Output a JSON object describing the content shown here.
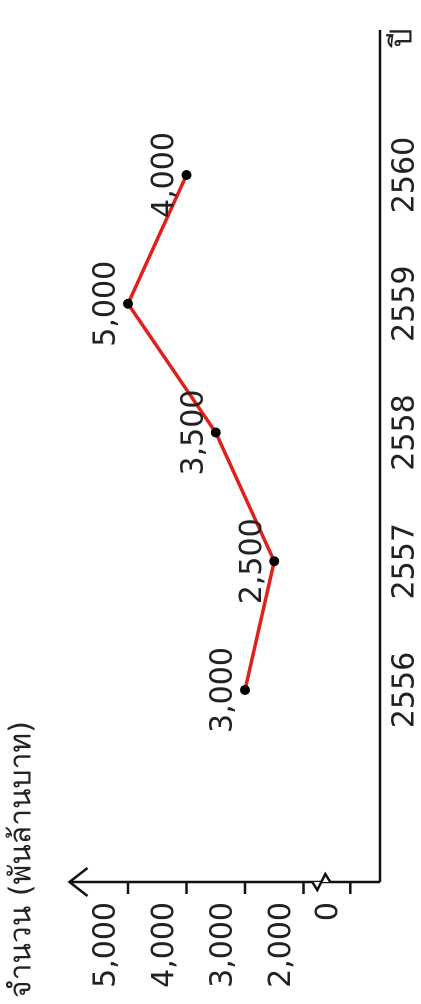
{
  "chart_data": {
    "type": "line",
    "y_label": "จำนวน (พันล้านบาท)",
    "x_label": "ปี",
    "categories": [
      "2556",
      "2557",
      "2558",
      "2559",
      "2560"
    ],
    "values": [
      3000,
      2500,
      3500,
      5000,
      4000
    ],
    "value_labels": [
      "3,000",
      "2,500",
      "3,500",
      "5,000",
      "4,000"
    ],
    "color": "#e0201c",
    "ylim": [
      1200,
      6000
    ],
    "yticks": [
      0,
      {
        "value": 2000,
        "label": "2,000"
      },
      {
        "value": 3000,
        "label": "3,000"
      },
      {
        "value": 4000,
        "label": "4,000"
      },
      {
        "value": 5000,
        "label": "5,000"
      }
    ],
    "grid": false
  }
}
